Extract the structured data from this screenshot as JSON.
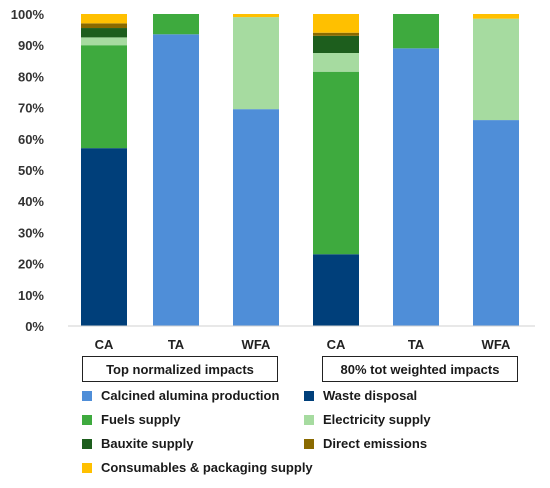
{
  "chart_data": {
    "type": "bar",
    "stacked": true,
    "y_axis": {
      "ylim": [
        0,
        100
      ],
      "ticks": [
        "0%",
        "10%",
        "20%",
        "30%",
        "40%",
        "50%",
        "60%",
        "70%",
        "80%",
        "90%",
        "100%"
      ]
    },
    "categories": [
      "CA",
      "TA",
      "WFA",
      "CA",
      "TA",
      "WFA"
    ],
    "groups": [
      {
        "label": "Top normalized impacts",
        "categories": [
          0,
          1,
          2
        ]
      },
      {
        "label": "80% tot weighted impacts",
        "categories": [
          3,
          4,
          5
        ]
      }
    ],
    "series": [
      {
        "name": "Waste disposal",
        "color": "#003f7a",
        "values": [
          57,
          0,
          0,
          23,
          0,
          0
        ]
      },
      {
        "name": "Calcined alumina production",
        "color": "#4f8ed8",
        "values": [
          0,
          93.5,
          69.5,
          0,
          89,
          66
        ]
      },
      {
        "name": "Fuels supply",
        "color": "#3eaa3e",
        "values": [
          33,
          6.5,
          0,
          58.5,
          11,
          0
        ]
      },
      {
        "name": "Electricity supply",
        "color": "#a6dba0",
        "values": [
          2.5,
          0,
          29.5,
          6,
          0,
          32.5
        ]
      },
      {
        "name": "Bauxite supply",
        "color": "#1d5e1d",
        "values": [
          3,
          0,
          0,
          5.5,
          0,
          0
        ]
      },
      {
        "name": "Direct emissions",
        "color": "#8a6a00",
        "values": [
          1.5,
          0,
          0,
          1,
          0,
          0
        ]
      },
      {
        "name": "Consumables & packaging supply",
        "color": "#ffc000",
        "values": [
          3,
          0,
          1,
          6,
          0,
          1.5
        ]
      }
    ],
    "legend": {
      "placement": "bottom",
      "order": [
        "Calcined alumina production",
        "Waste disposal",
        "Fuels supply",
        "Electricity supply",
        "Bauxite supply",
        "Direct emissions",
        "Consumables & packaging supply"
      ]
    }
  }
}
